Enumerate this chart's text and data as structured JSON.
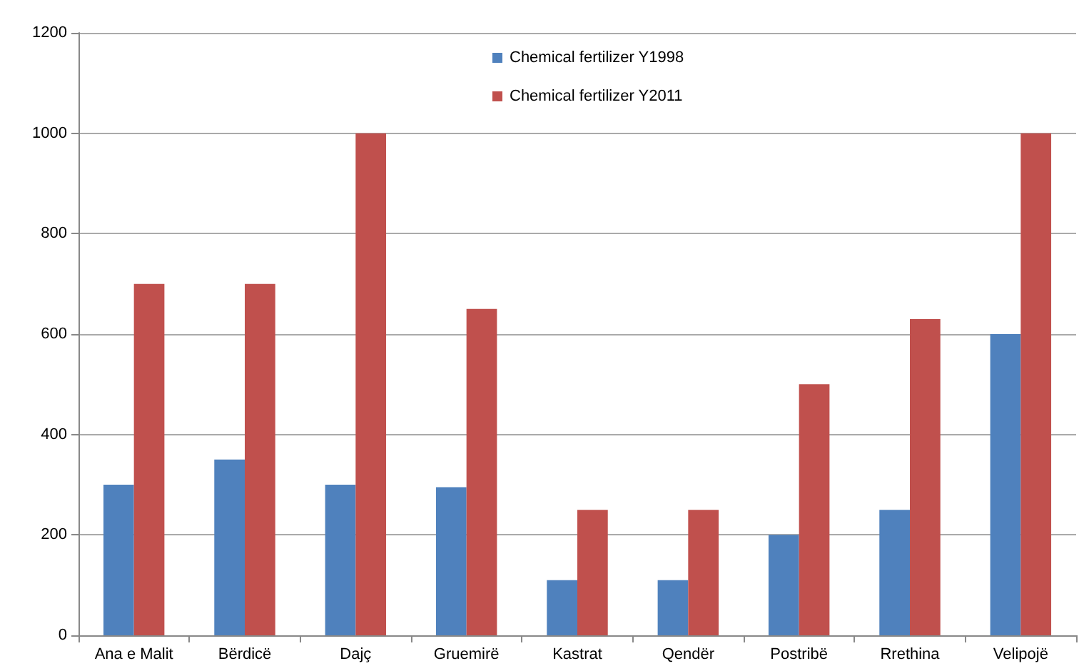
{
  "chart_data": {
    "type": "bar",
    "categories": [
      "Ana e Malit",
      "Bërdicë",
      "Dajç",
      "Gruemirë",
      "Kastrat",
      "Qendër",
      "Postribë",
      "Rrethina",
      "Velipojë"
    ],
    "series": [
      {
        "name": "Chemical fertilizer Y1998",
        "color": "#4f81bd",
        "values": [
          300,
          350,
          300,
          295,
          110,
          110,
          200,
          250,
          600
        ]
      },
      {
        "name": "Chemical fertilizer Y2011",
        "color": "#c0504d",
        "values": [
          700,
          700,
          1000,
          650,
          250,
          250,
          500,
          630,
          1000
        ]
      }
    ],
    "ylim": [
      0,
      1200
    ],
    "yticks": [
      0,
      200,
      400,
      600,
      800,
      1000,
      1200
    ],
    "grid": "y",
    "legend": "top"
  }
}
